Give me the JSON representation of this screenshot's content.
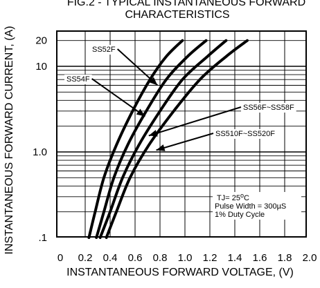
{
  "chart_data": {
    "type": "line",
    "title_lines": [
      "FIG.2 - TYPICAL INSTANTANEOUS FORWARD",
      "CHARACTERISTICS"
    ],
    "xlabel": "INSTANTANEOUS FORWARD VOLTAGE, (V)",
    "ylabel": "INSTANTANEOUS FORWARD CURRENT, (A)",
    "x_scale": "linear",
    "y_scale": "log",
    "xlim": [
      0,
      2.0
    ],
    "ylim": [
      0.1,
      20
    ],
    "x_ticks": [
      {
        "value": 0,
        "label": "0"
      },
      {
        "value": 0.2,
        "label": "0.2"
      },
      {
        "value": 0.4,
        "label": "0.4"
      },
      {
        "value": 0.6,
        "label": "0.6"
      },
      {
        "value": 0.8,
        "label": "0.8"
      },
      {
        "value": 1.0,
        "label": "1.0"
      },
      {
        "value": 1.2,
        "label": "1.2"
      },
      {
        "value": 1.4,
        "label": "1.4"
      },
      {
        "value": 1.6,
        "label": "1.6"
      },
      {
        "value": 1.8,
        "label": "1.8"
      },
      {
        "value": 2.0,
        "label": "2.0"
      }
    ],
    "y_ticks": [
      {
        "value": 0.1,
        "label": ".1"
      },
      {
        "value": 1.0,
        "label": "1.0"
      },
      {
        "value": 10,
        "label": "10"
      },
      {
        "value": 20,
        "label": "20"
      }
    ],
    "grid": true,
    "series": [
      {
        "name": "SS52F",
        "x": [
          0.23,
          0.28,
          0.35,
          0.45,
          0.58,
          0.72,
          0.85,
          0.98
        ],
        "y": [
          0.1,
          0.2,
          0.5,
          1.2,
          3,
          7,
          13,
          20
        ]
      },
      {
        "name": "SS54F",
        "x": [
          0.29,
          0.35,
          0.43,
          0.54,
          0.69,
          0.85,
          1.02,
          1.17
        ],
        "y": [
          0.1,
          0.2,
          0.5,
          1.2,
          3,
          7,
          13,
          20
        ]
      },
      {
        "name": "SS56F~SS58F",
        "x": [
          0.32,
          0.4,
          0.5,
          0.63,
          0.8,
          0.98,
          1.18,
          1.33
        ],
        "y": [
          0.1,
          0.2,
          0.5,
          1.2,
          3,
          7,
          13,
          20
        ]
      },
      {
        "name": "SS510F~SS520F",
        "x": [
          0.37,
          0.45,
          0.56,
          0.71,
          0.91,
          1.12,
          1.33,
          1.5
        ],
        "y": [
          0.1,
          0.2,
          0.5,
          1.2,
          3,
          7,
          13,
          20
        ]
      }
    ],
    "annotation_lines": [
      "TJ= 25°C",
      "Pulse Width = 300µS",
      "1% Duty Cycle"
    ]
  }
}
